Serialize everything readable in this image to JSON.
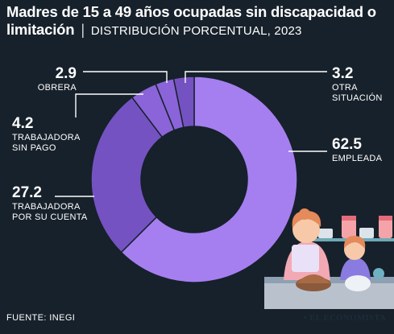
{
  "header": {
    "title": "Madres de 15 a 49 años ocupadas sin discapacidad o limitación",
    "separator": "|",
    "subtitle": "DISTRIBUCIÓN PORCENTUAL, 2023"
  },
  "footer": {
    "source": "FUENTE: INEGI",
    "brand": "EL ECONOMISTA"
  },
  "colors": {
    "background": "#17212b",
    "slice_main": "#a57ff0",
    "slice_mid": "#8a64d8",
    "slice_dark": "#7552c2",
    "separator_line": "#17212b"
  },
  "chart_data": {
    "type": "pie",
    "variant": "donut",
    "slices": [
      {
        "value_label": "62.5",
        "value": 62.5,
        "label_lines": [
          "EMPLEADA"
        ]
      },
      {
        "value_label": "27.2",
        "value": 27.2,
        "label_lines": [
          "TRABAJADORA",
          "POR SU CUENTA"
        ]
      },
      {
        "value_label": "4.2",
        "value": 4.2,
        "label_lines": [
          "TRABAJADORA",
          "SIN PAGO"
        ]
      },
      {
        "value_label": "2.9",
        "value": 2.9,
        "label_lines": [
          "OBRERA"
        ]
      },
      {
        "value_label": "3.2",
        "value": 3.2,
        "label_lines": [
          "OTRA",
          "SITUACIÓN"
        ]
      }
    ]
  }
}
